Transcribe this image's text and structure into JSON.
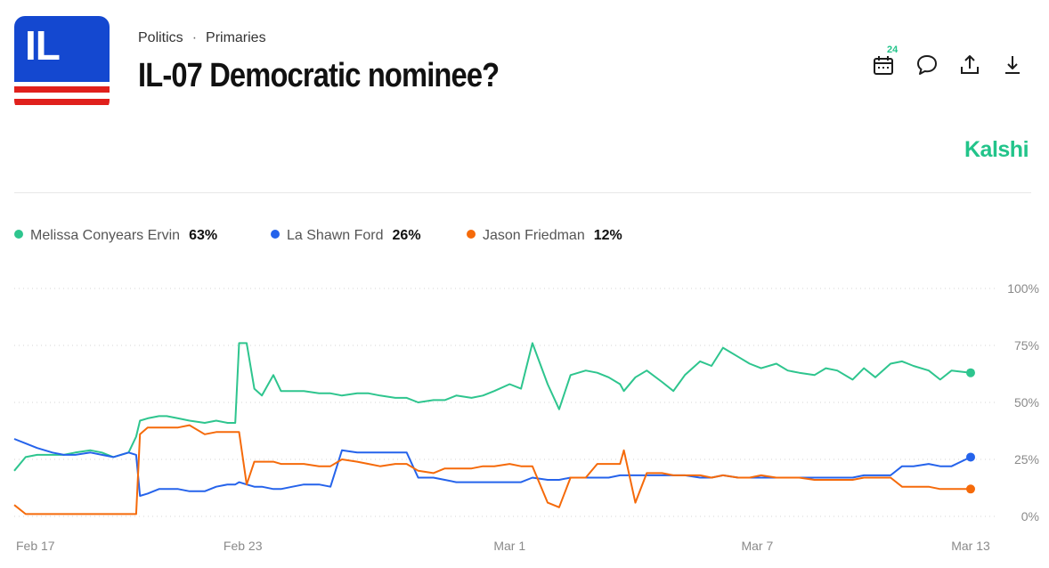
{
  "header": {
    "breadcrumb": [
      "Politics",
      "Primaries"
    ],
    "title": "IL-07 Democratic nominee?",
    "logo_text": "IL",
    "calendar_badge": "24",
    "brand": "Kalshi"
  },
  "icons": {
    "calendar": "calendar-icon",
    "comment": "comment-icon",
    "share": "share-icon",
    "download": "download-icon"
  },
  "colors": {
    "green": "#2ec58e",
    "blue": "#2563eb",
    "orange": "#f56a0a",
    "brand": "#22c48a",
    "logo_blue": "#1448d0",
    "logo_red": "#e0201c"
  },
  "chart_data": {
    "type": "line",
    "x_ticks": [
      "Feb 17",
      "Feb 23",
      "Mar 1",
      "Mar 7",
      "Mar 13"
    ],
    "y_ticks": [
      "100%",
      "75%",
      "50%",
      "25%",
      "0%"
    ],
    "ylim": [
      0,
      100
    ],
    "grid": "horizontal dotted",
    "x": [
      0,
      0.3,
      0.6,
      1,
      1.3,
      1.6,
      2,
      2.3,
      2.6,
      3,
      3.2,
      3.3,
      3.5,
      3.8,
      4,
      4.3,
      4.6,
      5,
      5.3,
      5.6,
      5.8,
      5.9,
      6.1,
      6.3,
      6.5,
      6.8,
      7,
      7.3,
      7.6,
      8,
      8.3,
      8.6,
      9,
      9.3,
      9.6,
      10,
      10.3,
      10.6,
      11,
      11.3,
      11.6,
      12,
      12.3,
      12.6,
      13,
      13.3,
      13.6,
      14,
      14.3,
      14.6,
      15,
      15.3,
      15.6,
      15.9,
      16,
      16.3,
      16.6,
      17,
      17.3,
      17.6,
      18,
      18.3,
      18.6,
      19,
      19.3,
      19.6,
      20,
      20.3,
      20.6,
      21,
      21.3,
      21.6,
      22,
      22.3,
      22.6,
      23,
      23.3,
      23.6,
      24,
      24.3,
      24.6,
      25.1
    ],
    "series": [
      {
        "name": "Melissa Conyears Ervin",
        "current": "63%",
        "color": "#2ec58e",
        "values": [
          20,
          26,
          27,
          27,
          27,
          28,
          29,
          28,
          26,
          28,
          35,
          42,
          43,
          44,
          44,
          43,
          42,
          41,
          42,
          41,
          41,
          76,
          76,
          56,
          53,
          62,
          55,
          55,
          55,
          54,
          54,
          53,
          54,
          54,
          53,
          52,
          52,
          50,
          51,
          51,
          53,
          52,
          53,
          55,
          58,
          56,
          76,
          58,
          47,
          62,
          64,
          63,
          61,
          58,
          55,
          61,
          64,
          59,
          55,
          62,
          68,
          66,
          74,
          70,
          67,
          65,
          67,
          64,
          63,
          62,
          65,
          64,
          60,
          65,
          61,
          67,
          68,
          66,
          64,
          60,
          64,
          63
        ],
        "end": 63
      },
      {
        "name": "La Shawn Ford",
        "current": "26%",
        "color": "#2563eb",
        "values": [
          34,
          32,
          30,
          28,
          27,
          27,
          28,
          27,
          26,
          28,
          27,
          9,
          10,
          12,
          12,
          12,
          11,
          11,
          13,
          14,
          14,
          15,
          14,
          13,
          13,
          12,
          12,
          13,
          14,
          14,
          13,
          29,
          28,
          28,
          28,
          28,
          28,
          17,
          17,
          16,
          15,
          15,
          15,
          15,
          15,
          15,
          17,
          16,
          16,
          17,
          17,
          17,
          17,
          18,
          18,
          18,
          18,
          18,
          18,
          18,
          17,
          17,
          18,
          17,
          17,
          17,
          17,
          17,
          17,
          17,
          17,
          17,
          17,
          18,
          18,
          18,
          22,
          22,
          23,
          22,
          22,
          26
        ],
        "end": 26
      },
      {
        "name": "Jason Friedman",
        "current": "12%",
        "color": "#f56a0a",
        "values": [
          5,
          1,
          1,
          1,
          1,
          1,
          1,
          1,
          1,
          1,
          1,
          36,
          39,
          39,
          39,
          39,
          40,
          36,
          37,
          37,
          37,
          37,
          14,
          24,
          24,
          24,
          23,
          23,
          23,
          22,
          22,
          25,
          24,
          23,
          22,
          23,
          23,
          20,
          19,
          21,
          21,
          21,
          22,
          22,
          23,
          22,
          22,
          6,
          4,
          17,
          17,
          23,
          23,
          23,
          29,
          6,
          19,
          19,
          18,
          18,
          18,
          17,
          18,
          17,
          17,
          18,
          17,
          17,
          17,
          16,
          16,
          16,
          16,
          17,
          17,
          17,
          13,
          13,
          13,
          12,
          12,
          12
        ],
        "end": 12
      }
    ]
  }
}
